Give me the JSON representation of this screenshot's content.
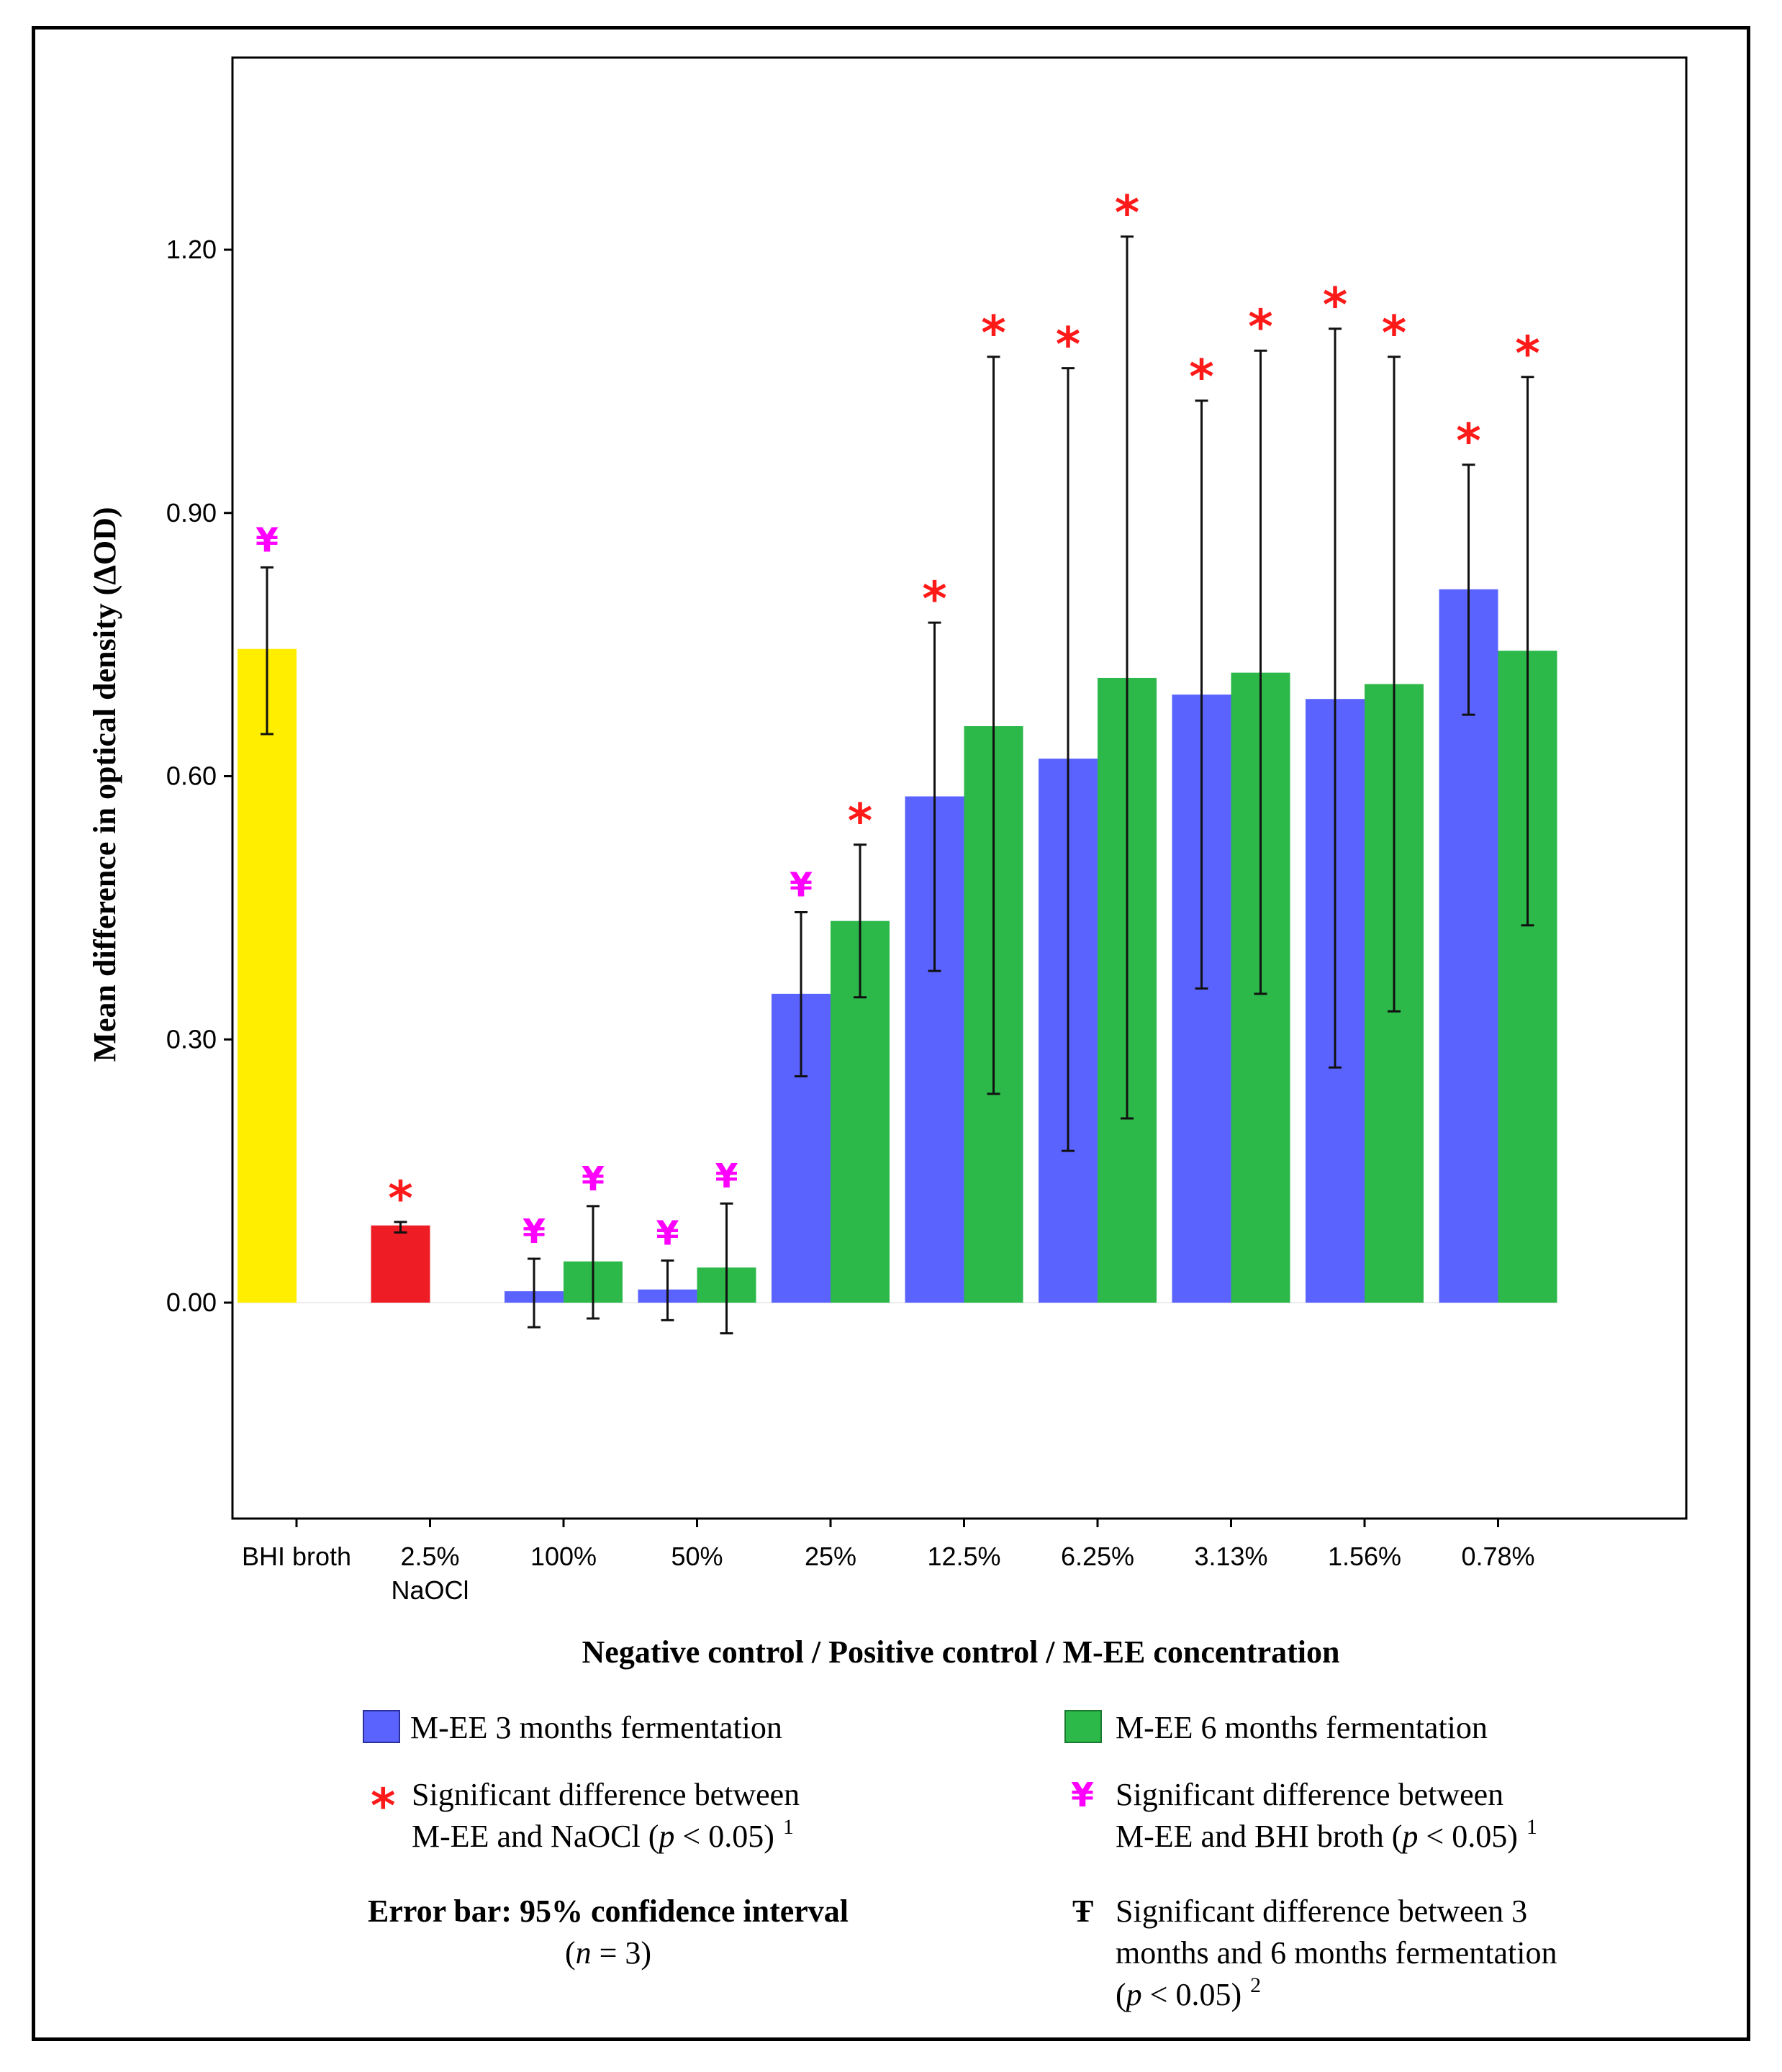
{
  "chart_data": {
    "type": "bar",
    "ylabel": "Mean difference in optical density (ΔOD)",
    "xlabel": "Negative control / Positive control / M-EE concentration",
    "ylim": [
      -0.24,
      1.42
    ],
    "yticks": [
      "0.00",
      "0.30",
      "0.60",
      "0.90",
      "1.20"
    ],
    "categories": [
      {
        "label": "BHI broth",
        "label2": ""
      },
      {
        "label": "2.5%",
        "label2": "NaOCl"
      },
      {
        "label": "100%",
        "label2": ""
      },
      {
        "label": "50%",
        "label2": ""
      },
      {
        "label": "25%",
        "label2": ""
      },
      {
        "label": "12.5%",
        "label2": ""
      },
      {
        "label": "6.25%",
        "label2": ""
      },
      {
        "label": "3.13%",
        "label2": ""
      },
      {
        "label": "1.56%",
        "label2": ""
      },
      {
        "label": "0.78%",
        "label2": ""
      }
    ],
    "controls": [
      {
        "category": 0,
        "value": 0.745,
        "ci": [
          0.648,
          0.838
        ],
        "color": "#ffee00",
        "mark": "yen"
      },
      {
        "category": 1,
        "value": 0.088,
        "ci": [
          0.08,
          0.092
        ],
        "color": "#ee1c24",
        "mark": "star"
      }
    ],
    "series": [
      {
        "name": "M-EE 3 months fermentation",
        "color": "#5b63ff",
        "values": [
          null,
          null,
          0.013,
          0.015,
          0.352,
          0.577,
          0.62,
          0.693,
          0.688,
          0.813
        ],
        "ci_low": [
          null,
          null,
          -0.028,
          -0.02,
          0.258,
          0.378,
          0.173,
          0.358,
          0.268,
          0.67
        ],
        "ci_high": [
          null,
          null,
          0.05,
          0.048,
          0.445,
          0.775,
          1.065,
          1.028,
          1.11,
          0.955
        ],
        "marks": [
          null,
          null,
          "yen",
          "yen",
          "yen",
          "star",
          "star",
          "star",
          "star",
          "star"
        ]
      },
      {
        "name": "M-EE 6 months fermentation",
        "color": "#2db84a",
        "values": [
          null,
          null,
          0.047,
          0.04,
          0.435,
          0.657,
          0.712,
          0.718,
          0.705,
          0.743
        ],
        "ci_low": [
          null,
          null,
          -0.018,
          -0.035,
          0.348,
          0.238,
          0.21,
          0.352,
          0.332,
          0.43
        ],
        "ci_high": [
          null,
          null,
          0.11,
          0.113,
          0.522,
          1.078,
          1.215,
          1.085,
          1.078,
          1.055
        ],
        "marks": [
          null,
          null,
          "yen",
          "yen",
          "star",
          "star",
          "star",
          "star",
          "star",
          "star"
        ]
      }
    ]
  },
  "legend": {
    "series1": "M-EE 3 months fermentation",
    "series2": "M-EE 6 months fermentation",
    "star_symbol": "*",
    "star_line1": "Significant difference between",
    "star_line2_pre": "M-EE and NaOCl (",
    "star_line2_p": "p",
    "star_line2_post": " < 0.05)",
    "star_sup": "1",
    "yen_symbol": "¥",
    "yen_line1": "Significant difference between",
    "yen_line2_pre": "M-EE and BHI broth (",
    "yen_line2_p": "p",
    "yen_line2_post": " < 0.05)",
    "yen_sup": "1",
    "error_line1": "Error bar: 95% confidence interval",
    "error_line2_pre": "(",
    "error_line2_n": "n",
    "error_line2_post": " = 3)",
    "tau_symbol": "Ŧ",
    "tau_line1": "Significant difference between 3",
    "tau_line2": "months and 6 months fermentation",
    "tau_line3_pre": "(",
    "tau_line3_p": "p",
    "tau_line3_post": " < 0.05)",
    "tau_sup": "2",
    "colors": {
      "star": "#ff1a1a",
      "yen": "#ff00ff",
      "tau": "#9b6a2f"
    }
  }
}
